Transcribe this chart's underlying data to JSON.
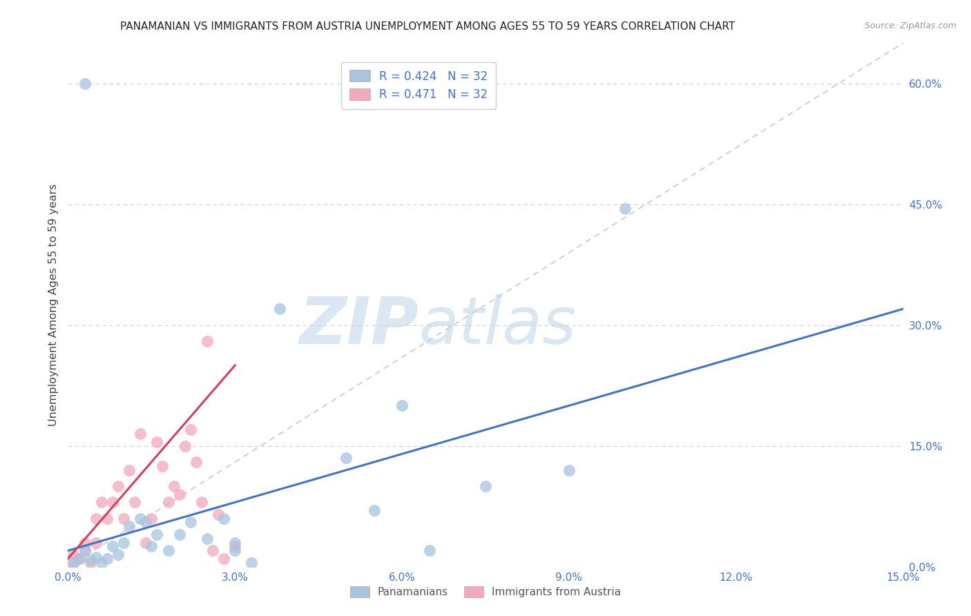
{
  "title": "PANAMANIAN VS IMMIGRANTS FROM AUSTRIA UNEMPLOYMENT AMONG AGES 55 TO 59 YEARS CORRELATION CHART",
  "source": "Source: ZipAtlas.com",
  "xlabel": "",
  "ylabel": "Unemployment Among Ages 55 to 59 years",
  "xlim": [
    0,
    0.15
  ],
  "ylim": [
    0,
    0.65
  ],
  "xticks": [
    0.0,
    0.03,
    0.06,
    0.09,
    0.12,
    0.15
  ],
  "xticklabels": [
    "0.0%",
    "3.0%",
    "6.0%",
    "9.0%",
    "12.0%",
    "15.0%"
  ],
  "yticks_right": [
    0.0,
    0.15,
    0.3,
    0.45,
    0.6
  ],
  "ytick_right_labels": [
    "0.0%",
    "15.0%",
    "30.0%",
    "45.0%",
    "60.0%"
  ],
  "legend_r1": "R = 0.424",
  "legend_n1": "N = 32",
  "legend_r2": "R = 0.471",
  "legend_n2": "N = 32",
  "blue_color": "#a8c4e0",
  "pink_color": "#f4a8bc",
  "blue_line_color": "#4472c4",
  "pink_line_color": "#d04060",
  "watermark_zip": "ZIP",
  "watermark_atlas": "atlas",
  "pan_x": [
    0.003,
    0.001,
    0.002,
    0.003,
    0.004,
    0.005,
    0.006,
    0.007,
    0.008,
    0.009,
    0.01,
    0.011,
    0.013,
    0.014,
    0.015,
    0.016,
    0.018,
    0.02,
    0.022,
    0.025,
    0.028,
    0.03,
    0.033,
    0.038,
    0.05,
    0.055,
    0.06,
    0.065,
    0.075,
    0.09,
    0.1,
    0.03
  ],
  "pan_y": [
    0.6,
    0.005,
    0.01,
    0.02,
    0.008,
    0.012,
    0.005,
    0.01,
    0.025,
    0.015,
    0.03,
    0.05,
    0.06,
    0.055,
    0.025,
    0.04,
    0.02,
    0.04,
    0.055,
    0.035,
    0.06,
    0.02,
    0.005,
    0.32,
    0.135,
    0.07,
    0.2,
    0.02,
    0.1,
    0.12,
    0.445,
    0.03
  ],
  "aut_x": [
    0.001,
    0.001,
    0.002,
    0.003,
    0.003,
    0.004,
    0.005,
    0.005,
    0.006,
    0.007,
    0.008,
    0.009,
    0.01,
    0.011,
    0.012,
    0.013,
    0.014,
    0.015,
    0.016,
    0.017,
    0.018,
    0.019,
    0.02,
    0.021,
    0.022,
    0.023,
    0.024,
    0.025,
    0.026,
    0.027,
    0.028,
    0.03
  ],
  "aut_y": [
    0.005,
    0.015,
    0.01,
    0.02,
    0.03,
    0.005,
    0.03,
    0.06,
    0.08,
    0.06,
    0.08,
    0.1,
    0.06,
    0.12,
    0.08,
    0.165,
    0.03,
    0.06,
    0.155,
    0.125,
    0.08,
    0.1,
    0.09,
    0.15,
    0.17,
    0.13,
    0.08,
    0.28,
    0.02,
    0.065,
    0.01,
    0.025
  ],
  "blue_trendline_x": [
    0.0,
    0.15
  ],
  "blue_trendline_y": [
    0.02,
    0.32
  ],
  "pink_trendline_x": [
    0.0,
    0.03
  ],
  "pink_trendline_y": [
    0.01,
    0.25
  ]
}
